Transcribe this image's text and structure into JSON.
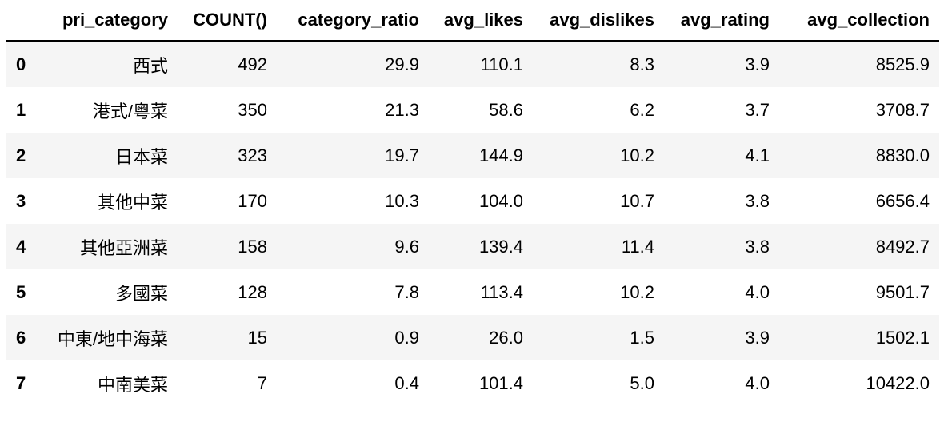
{
  "table": {
    "columns": [
      "",
      "pri_category",
      "COUNT()",
      "category_ratio",
      "avg_likes",
      "avg_dislikes",
      "avg_rating",
      "avg_collection"
    ],
    "rows": [
      [
        "0",
        "西式",
        "492",
        "29.9",
        "110.1",
        "8.3",
        "3.9",
        "8525.9"
      ],
      [
        "1",
        "港式/粵菜",
        "350",
        "21.3",
        "58.6",
        "6.2",
        "3.7",
        "3708.7"
      ],
      [
        "2",
        "日本菜",
        "323",
        "19.7",
        "144.9",
        "10.2",
        "4.1",
        "8830.0"
      ],
      [
        "3",
        "其他中菜",
        "170",
        "10.3",
        "104.0",
        "10.7",
        "3.8",
        "6656.4"
      ],
      [
        "4",
        "其他亞洲菜",
        "158",
        "9.6",
        "139.4",
        "11.4",
        "3.8",
        "8492.7"
      ],
      [
        "5",
        "多國菜",
        "128",
        "7.8",
        "113.4",
        "10.2",
        "4.0",
        "9501.7"
      ],
      [
        "6",
        "中東/地中海菜",
        "15",
        "0.9",
        "26.0",
        "1.5",
        "3.9",
        "1502.1"
      ],
      [
        "7",
        "中南美菜",
        "7",
        "0.4",
        "101.4",
        "5.0",
        "4.0",
        "10422.0"
      ]
    ]
  }
}
